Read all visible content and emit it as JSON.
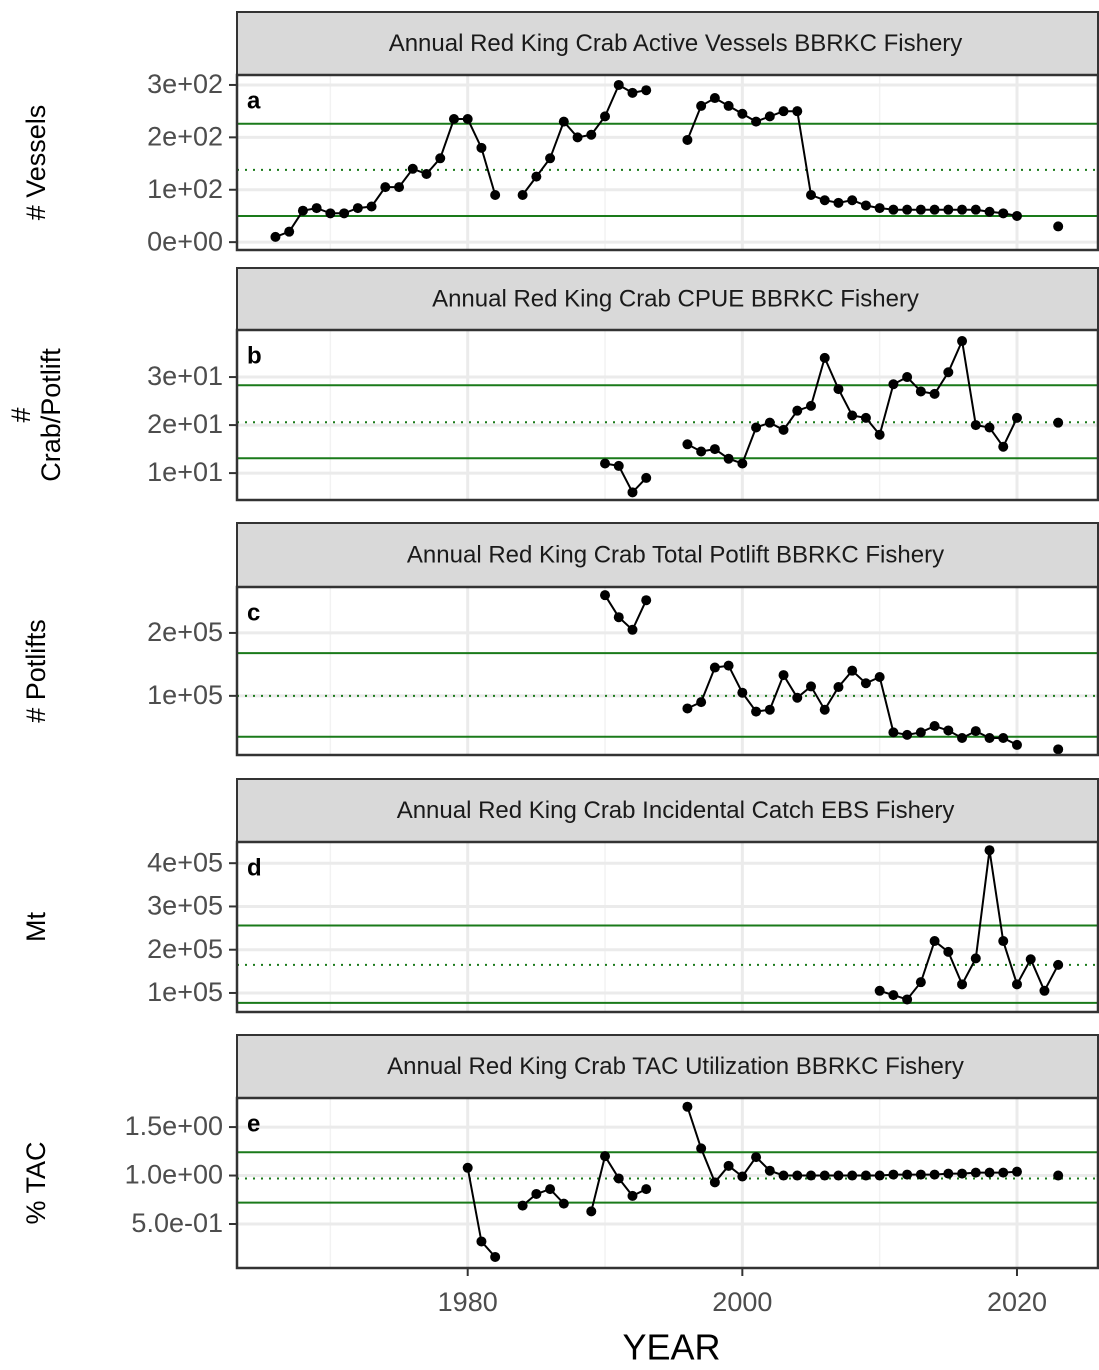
{
  "chart_data": [
    {
      "type": "line",
      "title": "Annual Red King Crab Active Vessels BBRKC Fishery",
      "panel_label": "a",
      "ylabel": [
        "# Vessels"
      ],
      "x": [
        1966,
        1967,
        1968,
        1969,
        1970,
        1971,
        1972,
        1973,
        1974,
        1975,
        1976,
        1977,
        1978,
        1979,
        1980,
        1981,
        1982,
        1983,
        1984,
        1985,
        1986,
        1987,
        1988,
        1989,
        1990,
        1991,
        1992,
        1993,
        1994,
        1995,
        1996,
        1997,
        1998,
        1999,
        2000,
        2001,
        2002,
        2003,
        2004,
        2005,
        2006,
        2007,
        2008,
        2009,
        2010,
        2011,
        2012,
        2013,
        2014,
        2015,
        2016,
        2017,
        2018,
        2019,
        2020,
        2021,
        2022,
        2023
      ],
      "values": [
        10,
        20,
        60,
        65,
        55,
        55,
        65,
        68,
        105,
        105,
        140,
        130,
        160,
        235,
        235,
        180,
        90,
        null,
        90,
        125,
        160,
        230,
        200,
        205,
        240,
        300,
        285,
        290,
        null,
        null,
        195,
        260,
        275,
        260,
        245,
        230,
        240,
        250,
        250,
        90,
        80,
        75,
        80,
        70,
        65,
        62,
        62,
        62,
        62,
        62,
        62,
        62,
        58,
        55,
        50,
        null,
        null,
        30
      ],
      "color": "#000000",
      "ref_color": "#1a7a1a",
      "ref_lines": {
        "mean": 138,
        "upper": 226,
        "lower": 50
      },
      "xlim": [
        1963.2,
        2025.9
      ],
      "xticks": [
        1980,
        2000,
        2020
      ],
      "xminor": [
        1970,
        1990,
        2010
      ],
      "ylim": [
        -15,
        319
      ],
      "yticks": [
        {
          "value": 0,
          "label": "0e+00"
        },
        {
          "value": 100,
          "label": "1e+02"
        },
        {
          "value": 200,
          "label": "2e+02"
        },
        {
          "value": 300,
          "label": "3e+02"
        }
      ],
      "grid": true
    },
    {
      "type": "line",
      "title": "Annual Red King Crab CPUE BBRKC Fishery",
      "panel_label": "b",
      "ylabel": [
        "#",
        "Crab/Potlift"
      ],
      "x": [
        1966,
        1967,
        1968,
        1969,
        1970,
        1971,
        1972,
        1973,
        1974,
        1975,
        1976,
        1977,
        1978,
        1979,
        1980,
        1981,
        1982,
        1983,
        1984,
        1985,
        1986,
        1987,
        1988,
        1989,
        1990,
        1991,
        1992,
        1993,
        1994,
        1995,
        1996,
        1997,
        1998,
        1999,
        2000,
        2001,
        2002,
        2003,
        2004,
        2005,
        2006,
        2007,
        2008,
        2009,
        2010,
        2011,
        2012,
        2013,
        2014,
        2015,
        2016,
        2017,
        2018,
        2019,
        2020,
        2021,
        2022,
        2023
      ],
      "values": [
        null,
        null,
        null,
        null,
        null,
        null,
        null,
        null,
        null,
        null,
        null,
        null,
        null,
        null,
        null,
        null,
        null,
        null,
        null,
        null,
        null,
        null,
        null,
        null,
        12,
        11.5,
        6,
        9,
        null,
        null,
        16,
        14.5,
        15,
        13,
        12,
        19.5,
        20.5,
        19,
        23,
        24,
        34,
        27.5,
        22,
        21.5,
        18,
        28.5,
        30,
        27,
        26.5,
        31,
        37.5,
        20,
        19.5,
        15.5,
        21.5,
        null,
        null,
        20.5
      ],
      "color": "#000000",
      "ref_color": "#1a7a1a",
      "ref_lines": {
        "mean": 20.6,
        "upper": 28.3,
        "lower": 13.1
      },
      "xlim": [
        1963.2,
        2025.9
      ],
      "xticks": [
        1980,
        2000,
        2020
      ],
      "xminor": [
        1970,
        1990,
        2010
      ],
      "ylim": [
        4.4,
        39.8
      ],
      "yticks": [
        {
          "value": 10,
          "label": "1e+01"
        },
        {
          "value": 20,
          "label": "2e+01"
        },
        {
          "value": 30,
          "label": "3e+01"
        }
      ],
      "grid": true
    },
    {
      "type": "line",
      "title": "Annual Red King Crab Total Potlift BBRKC Fishery",
      "panel_label": "c",
      "ylabel": [
        "# Potlifts"
      ],
      "x": [
        1966,
        1967,
        1968,
        1969,
        1970,
        1971,
        1972,
        1973,
        1974,
        1975,
        1976,
        1977,
        1978,
        1979,
        1980,
        1981,
        1982,
        1983,
        1984,
        1985,
        1986,
        1987,
        1988,
        1989,
        1990,
        1991,
        1992,
        1993,
        1994,
        1995,
        1996,
        1997,
        1998,
        1999,
        2000,
        2001,
        2002,
        2003,
        2004,
        2005,
        2006,
        2007,
        2008,
        2009,
        2010,
        2011,
        2012,
        2013,
        2014,
        2015,
        2016,
        2017,
        2018,
        2019,
        2020,
        2021,
        2022,
        2023
      ],
      "values": [
        null,
        null,
        null,
        null,
        null,
        null,
        null,
        null,
        null,
        null,
        null,
        null,
        null,
        null,
        null,
        null,
        null,
        null,
        null,
        null,
        null,
        null,
        null,
        null,
        260000,
        225000,
        205000,
        252000,
        null,
        null,
        80000,
        90000,
        145000,
        148000,
        105000,
        75000,
        78000,
        133000,
        97000,
        115000,
        78000,
        114000,
        140000,
        120000,
        130000,
        42000,
        38000,
        42000,
        52000,
        45000,
        33000,
        44000,
        33000,
        33000,
        22000,
        null,
        null,
        15000
      ],
      "color": "#000000",
      "ref_color": "#1a7a1a",
      "ref_lines": {
        "mean": 100000,
        "upper": 168000,
        "lower": 35000
      },
      "xlim": [
        1963.2,
        2025.9
      ],
      "xticks": [
        1980,
        2000,
        2020
      ],
      "xminor": [
        1970,
        1990,
        2010
      ],
      "ylim": [
        6000,
        273000
      ],
      "yticks": [
        {
          "value": 100000,
          "label": "1e+05"
        },
        {
          "value": 200000,
          "label": "2e+05"
        }
      ],
      "grid": true
    },
    {
      "type": "line",
      "title": "Annual Red King Crab Incidental Catch EBS Fishery",
      "panel_label": "d",
      "ylabel": [
        "Mt"
      ],
      "x": [
        1966,
        1967,
        1968,
        1969,
        1970,
        1971,
        1972,
        1973,
        1974,
        1975,
        1976,
        1977,
        1978,
        1979,
        1980,
        1981,
        1982,
        1983,
        1984,
        1985,
        1986,
        1987,
        1988,
        1989,
        1990,
        1991,
        1992,
        1993,
        1994,
        1995,
        1996,
        1997,
        1998,
        1999,
        2000,
        2001,
        2002,
        2003,
        2004,
        2005,
        2006,
        2007,
        2008,
        2009,
        2010,
        2011,
        2012,
        2013,
        2014,
        2015,
        2016,
        2017,
        2018,
        2019,
        2020,
        2021,
        2022,
        2023
      ],
      "values": [
        null,
        null,
        null,
        null,
        null,
        null,
        null,
        null,
        null,
        null,
        null,
        null,
        null,
        null,
        null,
        null,
        null,
        null,
        null,
        null,
        null,
        null,
        null,
        null,
        null,
        null,
        null,
        null,
        null,
        null,
        null,
        null,
        null,
        null,
        null,
        null,
        null,
        null,
        null,
        null,
        null,
        null,
        null,
        null,
        105000,
        95000,
        85000,
        125000,
        220000,
        195000,
        120000,
        180000,
        430000,
        220000,
        120000,
        178000,
        105000,
        165000
      ],
      "color": "#000000",
      "ref_color": "#1a7a1a",
      "ref_lines": {
        "mean": 165000,
        "upper": 256000,
        "lower": 77000
      },
      "xlim": [
        1963.2,
        2025.9
      ],
      "xticks": [
        1980,
        2000,
        2020
      ],
      "xminor": [
        1970,
        1990,
        2010
      ],
      "ylim": [
        56000,
        449000
      ],
      "yticks": [
        {
          "value": 100000,
          "label": "1e+05"
        },
        {
          "value": 200000,
          "label": "2e+05"
        },
        {
          "value": 300000,
          "label": "3e+05"
        },
        {
          "value": 400000,
          "label": "4e+05"
        }
      ],
      "grid": true
    },
    {
      "type": "line",
      "title": "Annual Red King Crab TAC Utilization BBRKC Fishery",
      "panel_label": "e",
      "ylabel": [
        "% TAC"
      ],
      "xlabel": "YEAR",
      "x": [
        1966,
        1967,
        1968,
        1969,
        1970,
        1971,
        1972,
        1973,
        1974,
        1975,
        1976,
        1977,
        1978,
        1979,
        1980,
        1981,
        1982,
        1983,
        1984,
        1985,
        1986,
        1987,
        1988,
        1989,
        1990,
        1991,
        1992,
        1993,
        1994,
        1995,
        1996,
        1997,
        1998,
        1999,
        2000,
        2001,
        2002,
        2003,
        2004,
        2005,
        2006,
        2007,
        2008,
        2009,
        2010,
        2011,
        2012,
        2013,
        2014,
        2015,
        2016,
        2017,
        2018,
        2019,
        2020,
        2021,
        2022,
        2023
      ],
      "values": [
        null,
        null,
        null,
        null,
        null,
        null,
        null,
        null,
        null,
        null,
        null,
        null,
        null,
        null,
        1.08,
        0.32,
        0.16,
        null,
        0.69,
        0.81,
        0.86,
        0.71,
        null,
        0.63,
        1.2,
        0.97,
        0.79,
        0.86,
        null,
        null,
        1.71,
        1.28,
        0.93,
        1.1,
        0.99,
        1.19,
        1.05,
        1.0,
        1.0,
        1.0,
        1.0,
        1.0,
        1.0,
        1.0,
        1.0,
        1.01,
        1.01,
        1.01,
        1.01,
        1.02,
        1.02,
        1.03,
        1.03,
        1.03,
        1.04,
        null,
        null,
        1.0
      ],
      "color": "#000000",
      "ref_color": "#1a7a1a",
      "ref_lines": {
        "mean": 0.97,
        "upper": 1.24,
        "lower": 0.72
      },
      "xlim": [
        1963.2,
        2025.9
      ],
      "xticks": [
        1980,
        2000,
        2020
      ],
      "xminor": [
        1970,
        1990,
        2010
      ],
      "ylim": [
        0.046,
        1.8
      ],
      "yticks": [
        {
          "value": 0.5,
          "label": "5.0e-01"
        },
        {
          "value": 1.0,
          "label": "1.0e+00"
        },
        {
          "value": 1.5,
          "label": "1.5e+00"
        }
      ],
      "grid": true
    }
  ]
}
